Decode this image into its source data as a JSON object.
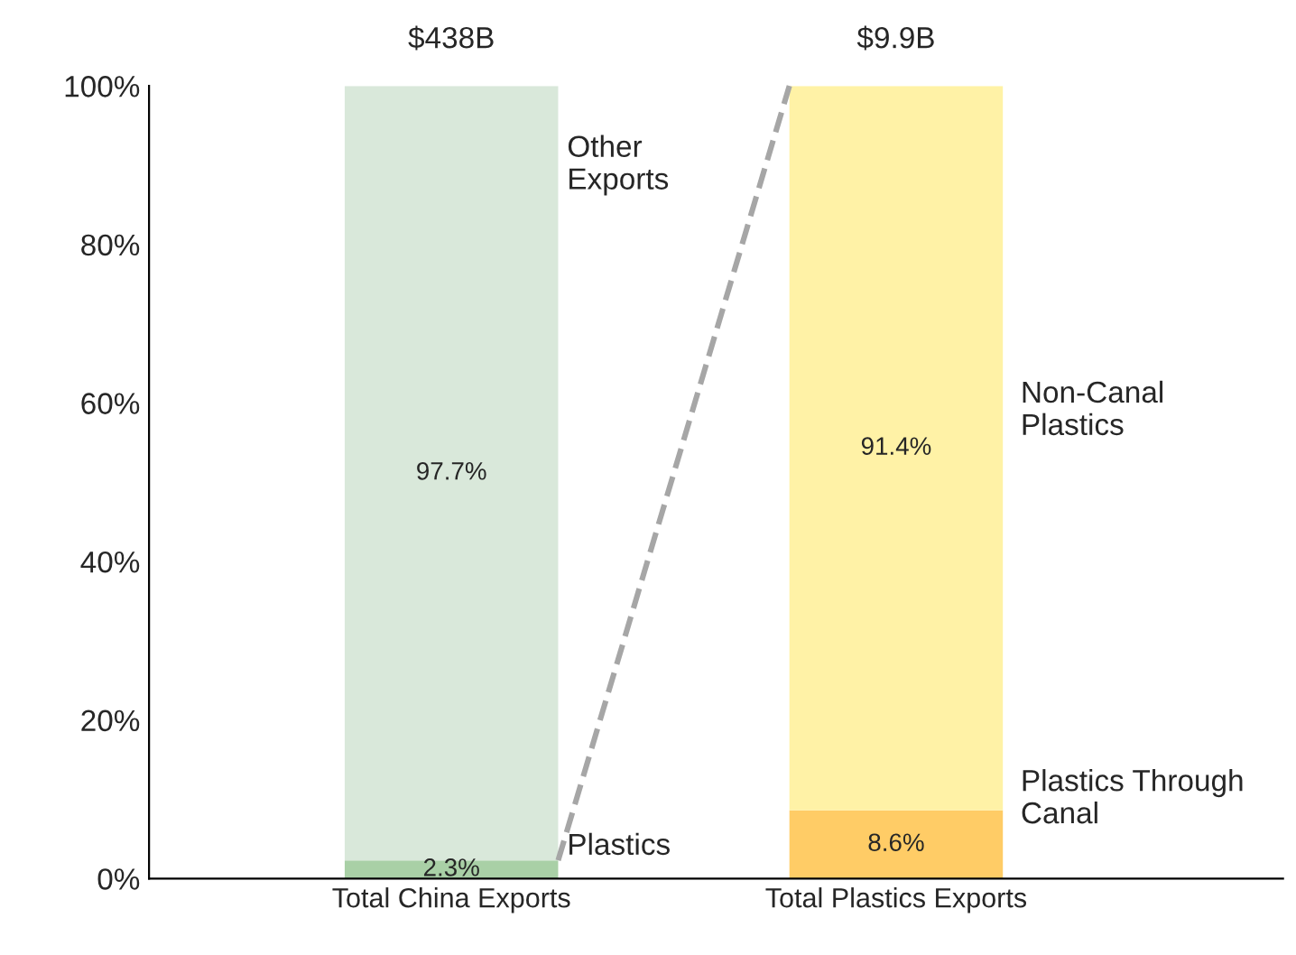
{
  "chart_data": {
    "type": "bar",
    "stacked": true,
    "categories": [
      "Total China Exports",
      "Total Plastics Exports"
    ],
    "series": [
      {
        "colors": [
          "#a9d0a6",
          "#ffcc66"
        ],
        "values": [
          2.3,
          8.6
        ],
        "value_labels": [
          "2.3%",
          "8.6%"
        ]
      },
      {
        "colors": [
          "#d9e8da",
          "#fff2a6"
        ],
        "values": [
          97.7,
          91.4
        ],
        "value_labels": [
          "97.7%",
          "91.4%"
        ]
      }
    ],
    "ylim": [
      0,
      100
    ],
    "yticks": [
      {
        "value": 0,
        "label": "0%"
      },
      {
        "value": 20,
        "label": "20%"
      },
      {
        "value": 40,
        "label": "40%"
      },
      {
        "value": 60,
        "label": "60%"
      },
      {
        "value": 80,
        "label": "80%"
      },
      {
        "value": 100,
        "label": "100%"
      }
    ],
    "annotations": [
      "$438B",
      "$9.9B",
      "Other\nExports",
      "Plastics",
      "Non-Canal\nPlastics",
      "Plastics Through\nCanal"
    ],
    "grid": false,
    "legend": false
  }
}
